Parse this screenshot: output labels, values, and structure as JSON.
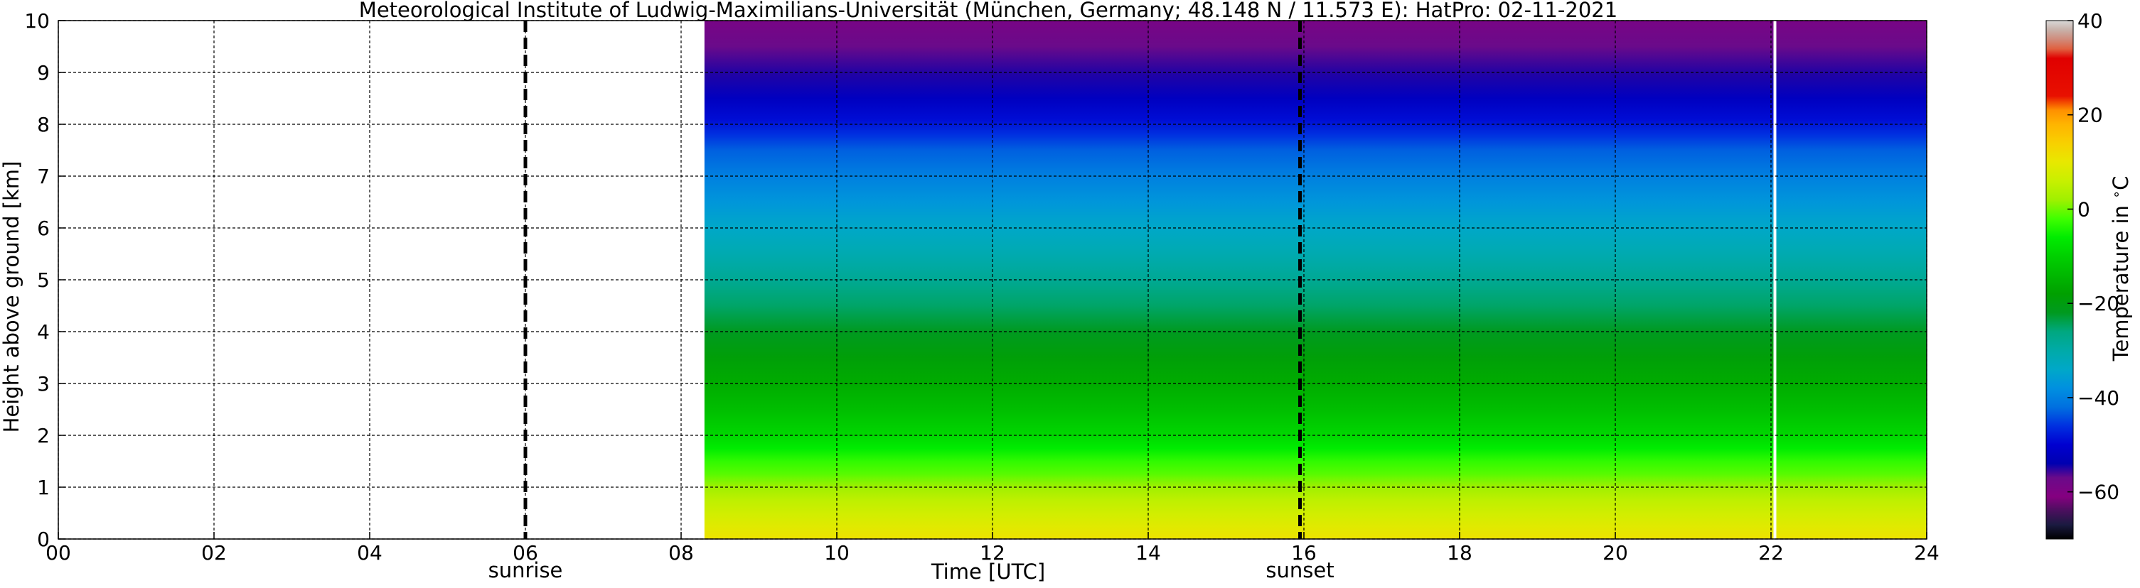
{
  "chart_data": {
    "type": "heatmap",
    "title": "Meteorological Institute of Ludwig-Maximilians-Universität (München, Germany; 48.148 N / 11.573 E):    HatPro: 02-11-2021",
    "xlabel": "Time [UTC]",
    "ylabel": "Height above ground [km]",
    "xlim": [
      0,
      24
    ],
    "ylim": [
      0,
      10
    ],
    "x_ticks": [
      "00",
      "02",
      "04",
      "06",
      "08",
      "10",
      "12",
      "14",
      "16",
      "18",
      "20",
      "22",
      "24"
    ],
    "y_ticks": [
      "0",
      "1",
      "2",
      "3",
      "4",
      "5",
      "6",
      "7",
      "8",
      "9",
      "10"
    ],
    "grid": true,
    "data_time_range": [
      8.3,
      24
    ],
    "data_gap_time": 22.05,
    "markers": [
      {
        "label": "sunrise",
        "time": 6.0
      },
      {
        "label": "sunset",
        "time": 15.95
      }
    ],
    "temperature_profile": {
      "heights_km": [
        0.0,
        0.25,
        0.5,
        0.75,
        1.0,
        1.25,
        1.5,
        1.75,
        2.0,
        2.5,
        3.0,
        3.5,
        4.0,
        4.5,
        5.0,
        5.5,
        6.0,
        6.5,
        7.0,
        7.5,
        7.8,
        8.1,
        8.5,
        9.0,
        9.5,
        10.0
      ],
      "temperatures_c": [
        11,
        9,
        7,
        5,
        2,
        -1,
        -3,
        -6,
        -9,
        -13,
        -16,
        -19,
        -22,
        -25,
        -28,
        -31,
        -34,
        -37,
        -40,
        -43,
        -46,
        -49,
        -52,
        -55,
        -57,
        -59
      ]
    },
    "colorbar": {
      "label": "Temperature in $^\\circ$C",
      "range": [
        -70,
        40
      ],
      "ticks": [
        "40",
        "20",
        "0",
        "−20",
        "−40",
        "−60"
      ],
      "tick_values": [
        40,
        20,
        0,
        -20,
        -40,
        -60
      ],
      "stops": [
        {
          "t": -70,
          "color": "#000000"
        },
        {
          "t": -67,
          "color": "#1a1a40"
        },
        {
          "t": -64,
          "color": "#4a0f5e"
        },
        {
          "t": -61,
          "color": "#850080"
        },
        {
          "t": -57,
          "color": "#6a0a8a"
        },
        {
          "t": -54,
          "color": "#0000b0"
        },
        {
          "t": -50,
          "color": "#0000d0"
        },
        {
          "t": -46,
          "color": "#0030e0"
        },
        {
          "t": -42,
          "color": "#0070e0"
        },
        {
          "t": -38,
          "color": "#0090e0"
        },
        {
          "t": -34,
          "color": "#00a8c8"
        },
        {
          "t": -30,
          "color": "#00aaa8"
        },
        {
          "t": -26,
          "color": "#00a880"
        },
        {
          "t": -22,
          "color": "#009a20"
        },
        {
          "t": -18,
          "color": "#00a000"
        },
        {
          "t": -14,
          "color": "#00b800"
        },
        {
          "t": -10,
          "color": "#00d000"
        },
        {
          "t": -6,
          "color": "#00ec00"
        },
        {
          "t": -2,
          "color": "#40ff00"
        },
        {
          "t": 2,
          "color": "#a0f000"
        },
        {
          "t": 6,
          "color": "#c8f000"
        },
        {
          "t": 10,
          "color": "#e8e800"
        },
        {
          "t": 14,
          "color": "#f8d000"
        },
        {
          "t": 18,
          "color": "#ffb400"
        },
        {
          "t": 21,
          "color": "#ff9000"
        },
        {
          "t": 24,
          "color": "#e81000"
        },
        {
          "t": 32,
          "color": "#e00000"
        },
        {
          "t": 34,
          "color": "#e06040"
        },
        {
          "t": 36,
          "color": "#d08a7a"
        },
        {
          "t": 38,
          "color": "#c8b0a8"
        },
        {
          "t": 40,
          "color": "#d8d8d8"
        }
      ]
    }
  }
}
